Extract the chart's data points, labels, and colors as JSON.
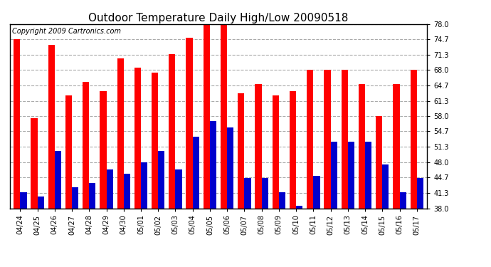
{
  "title": "Outdoor Temperature Daily High/Low 20090518",
  "copyright": "Copyright 2009 Cartronics.com",
  "categories": [
    "04/24",
    "04/25",
    "04/26",
    "04/27",
    "04/28",
    "04/29",
    "04/30",
    "05/01",
    "05/02",
    "05/03",
    "05/04",
    "05/05",
    "05/06",
    "05/07",
    "05/08",
    "05/09",
    "05/10",
    "05/11",
    "05/12",
    "05/13",
    "05/14",
    "05/15",
    "05/16",
    "05/17"
  ],
  "highs": [
    74.7,
    57.5,
    73.5,
    62.5,
    65.5,
    63.5,
    70.5,
    68.5,
    67.5,
    71.5,
    75.0,
    78.0,
    78.0,
    63.0,
    65.0,
    62.5,
    63.5,
    68.0,
    68.0,
    68.0,
    65.0,
    58.0,
    65.0,
    68.0
  ],
  "lows": [
    41.5,
    40.5,
    50.5,
    42.5,
    43.5,
    46.5,
    45.5,
    48.0,
    50.5,
    46.5,
    53.5,
    57.0,
    55.5,
    44.5,
    44.5,
    41.5,
    38.5,
    45.0,
    52.5,
    52.5,
    52.5,
    47.5,
    41.5,
    44.5
  ],
  "high_color": "#ff0000",
  "low_color": "#0000cc",
  "bg_color": "#ffffff",
  "grid_color": "#aaaaaa",
  "ymin": 38.0,
  "ymax": 78.0,
  "yticks": [
    38.0,
    41.3,
    44.7,
    48.0,
    51.3,
    54.7,
    58.0,
    61.3,
    64.7,
    68.0,
    71.3,
    74.7,
    78.0
  ],
  "title_fontsize": 11,
  "copyright_fontsize": 7,
  "tick_fontsize": 7,
  "bar_width": 0.38
}
